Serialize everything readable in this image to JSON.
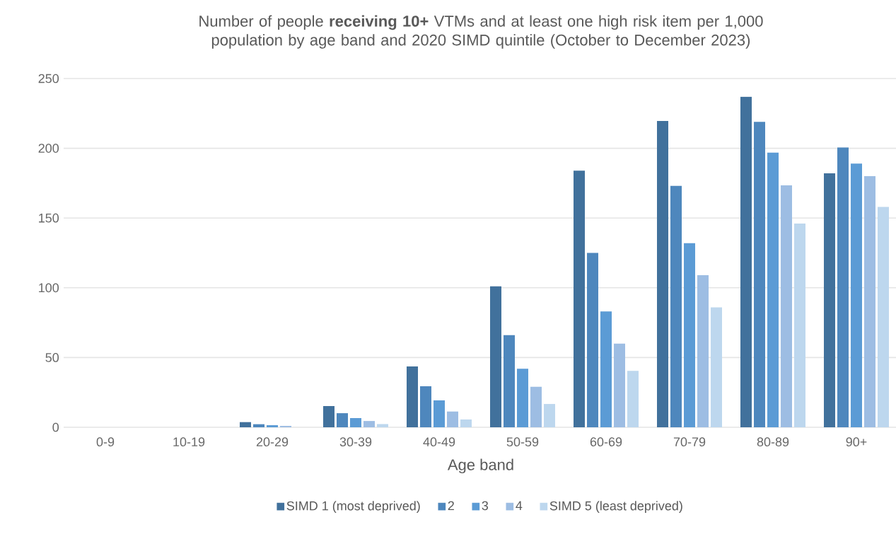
{
  "chart_data": {
    "type": "bar",
    "title": "Number of people **receiving 10+** VTMs and at least one high risk item per 1,000 population by age band and 2020 SIMD quintile (October to December 2023)",
    "xlabel": "Age band",
    "categories": [
      "0-9",
      "10-19",
      "20-29",
      "30-39",
      "40-49",
      "50-59",
      "60-69",
      "70-79",
      "80-89",
      "90+"
    ],
    "series": [
      {
        "name": "SIMD 1 (most deprived)",
        "color": "#41719c",
        "values": [
          0,
          0,
          3.7,
          15.2,
          43.6,
          101,
          184,
          219.6,
          237,
          182
        ]
      },
      {
        "name": "2",
        "color": "#4e87bd",
        "values": [
          0,
          0,
          2.2,
          10.1,
          29.4,
          66,
          125,
          173,
          219,
          200.5
        ]
      },
      {
        "name": "3",
        "color": "#5b9bd5",
        "values": [
          0,
          0,
          1.5,
          6.6,
          19.3,
          42,
          83,
          132,
          197,
          189
        ]
      },
      {
        "name": "4",
        "color": "#9dbde3",
        "values": [
          0,
          0,
          1.0,
          4.5,
          11.3,
          29,
          60,
          109,
          173.4,
          180
        ]
      },
      {
        "name": "SIMD 5 (least deprived)",
        "color": "#bdd7ee",
        "values": [
          0,
          0,
          0,
          2.3,
          5.6,
          16.7,
          40.5,
          86,
          146,
          158
        ]
      }
    ],
    "ylim": [
      0,
      250
    ],
    "yticks": [
      0,
      50,
      100,
      150,
      200,
      250
    ],
    "grid": "y",
    "legend": "bottom"
  }
}
